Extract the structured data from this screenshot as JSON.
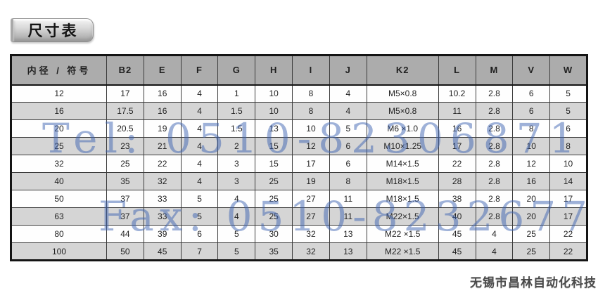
{
  "page": {
    "title_label": "尺寸表"
  },
  "table": {
    "columns": [
      "内径 / 符号",
      "B2",
      "E",
      "F",
      "G",
      "H",
      "I",
      "J",
      "K2",
      "L",
      "M",
      "V",
      "W"
    ],
    "rows": [
      [
        "12",
        "17",
        "16",
        "4",
        "1",
        "10",
        "8",
        "4",
        "M5×0.8",
        "10.2",
        "2.8",
        "6",
        "5"
      ],
      [
        "16",
        "17.5",
        "16",
        "4",
        "1.5",
        "10",
        "8",
        "4",
        "M5×0.8",
        "11",
        "2.8",
        "6",
        "5"
      ],
      [
        "20",
        "20.5",
        "19",
        "4",
        "1.5",
        "13",
        "10",
        "5",
        "M6 ×1.0",
        "16",
        "2.8",
        "8",
        "6"
      ],
      [
        "25",
        "23",
        "21",
        "4",
        "2",
        "15",
        "12",
        "6",
        "M10×1.25",
        "17",
        "2.8",
        "10",
        "8"
      ],
      [
        "32",
        "25",
        "22",
        "4",
        "3",
        "15",
        "17",
        "6",
        "M14×1.5",
        "22",
        "2.8",
        "12",
        "10"
      ],
      [
        "40",
        "35",
        "32",
        "4",
        "3",
        "25",
        "19",
        "8",
        "M18×1.5",
        "28",
        "2.8",
        "16",
        "14"
      ],
      [
        "50",
        "37",
        "33",
        "5",
        "4",
        "25",
        "27",
        "11",
        "M18×1.5",
        "38",
        "2.8",
        "20",
        "17"
      ],
      [
        "63",
        "37",
        "33",
        "5",
        "4",
        "25",
        "27",
        "11",
        "M22×1.5",
        "40",
        "2.8",
        "20",
        "17"
      ],
      [
        "80",
        "44",
        "39",
        "6",
        "5",
        "30",
        "32",
        "13",
        "M22 ×1.5",
        "45",
        "4",
        "25",
        "22"
      ],
      [
        "100",
        "50",
        "45",
        "7",
        "5",
        "35",
        "32",
        "13",
        "M22 ×1.5",
        "45",
        "4",
        "25",
        "22"
      ]
    ]
  },
  "watermark": {
    "line1": "Tel: 0510-82306871",
    "line2": "Fax: 0510-82326771",
    "color": "#3e63b1"
  },
  "footer": {
    "company": "无锡市昌林自动化科技"
  },
  "colors": {
    "header_bg": "#acacac",
    "stripe_bg": "#d5d5d5",
    "table_border": "#141414",
    "cell_text": "#1f1f1f"
  }
}
